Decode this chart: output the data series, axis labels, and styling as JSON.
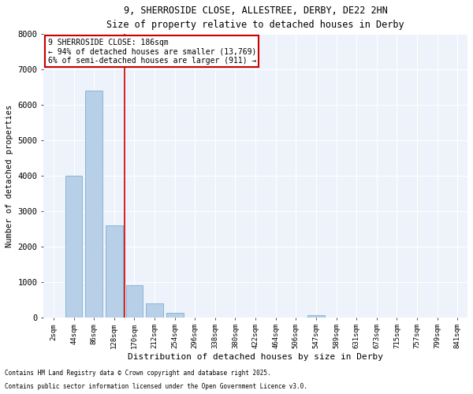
{
  "title_line1": "9, SHERROSIDE CLOSE, ALLESTREE, DERBY, DE22 2HN",
  "title_line2": "Size of property relative to detached houses in Derby",
  "xlabel": "Distribution of detached houses by size in Derby",
  "ylabel": "Number of detached properties",
  "categories": [
    "2sqm",
    "44sqm",
    "86sqm",
    "128sqm",
    "170sqm",
    "212sqm",
    "254sqm",
    "296sqm",
    "338sqm",
    "380sqm",
    "422sqm",
    "464sqm",
    "506sqm",
    "547sqm",
    "589sqm",
    "631sqm",
    "673sqm",
    "715sqm",
    "757sqm",
    "799sqm",
    "841sqm"
  ],
  "values": [
    0,
    4000,
    6400,
    2600,
    900,
    390,
    130,
    0,
    0,
    0,
    0,
    0,
    0,
    50,
    0,
    0,
    0,
    0,
    0,
    0,
    0
  ],
  "bar_color": "#b8cfe8",
  "bar_edge_color": "#7aafd4",
  "property_line_x": 3.5,
  "annotation_text": "9 SHERROSIDE CLOSE: 186sqm\n← 94% of detached houses are smaller (13,769)\n6% of semi-detached houses are larger (911) →",
  "annotation_box_color": "#ffffff",
  "annotation_box_edge_color": "#cc0000",
  "line_color": "#cc0000",
  "ylim": [
    0,
    8000
  ],
  "yticks": [
    0,
    1000,
    2000,
    3000,
    4000,
    5000,
    6000,
    7000,
    8000
  ],
  "background_color": "#eef2fa",
  "grid_color": "#ffffff",
  "footnote1": "Contains HM Land Registry data © Crown copyright and database right 2025.",
  "footnote2": "Contains public sector information licensed under the Open Government Licence v3.0."
}
